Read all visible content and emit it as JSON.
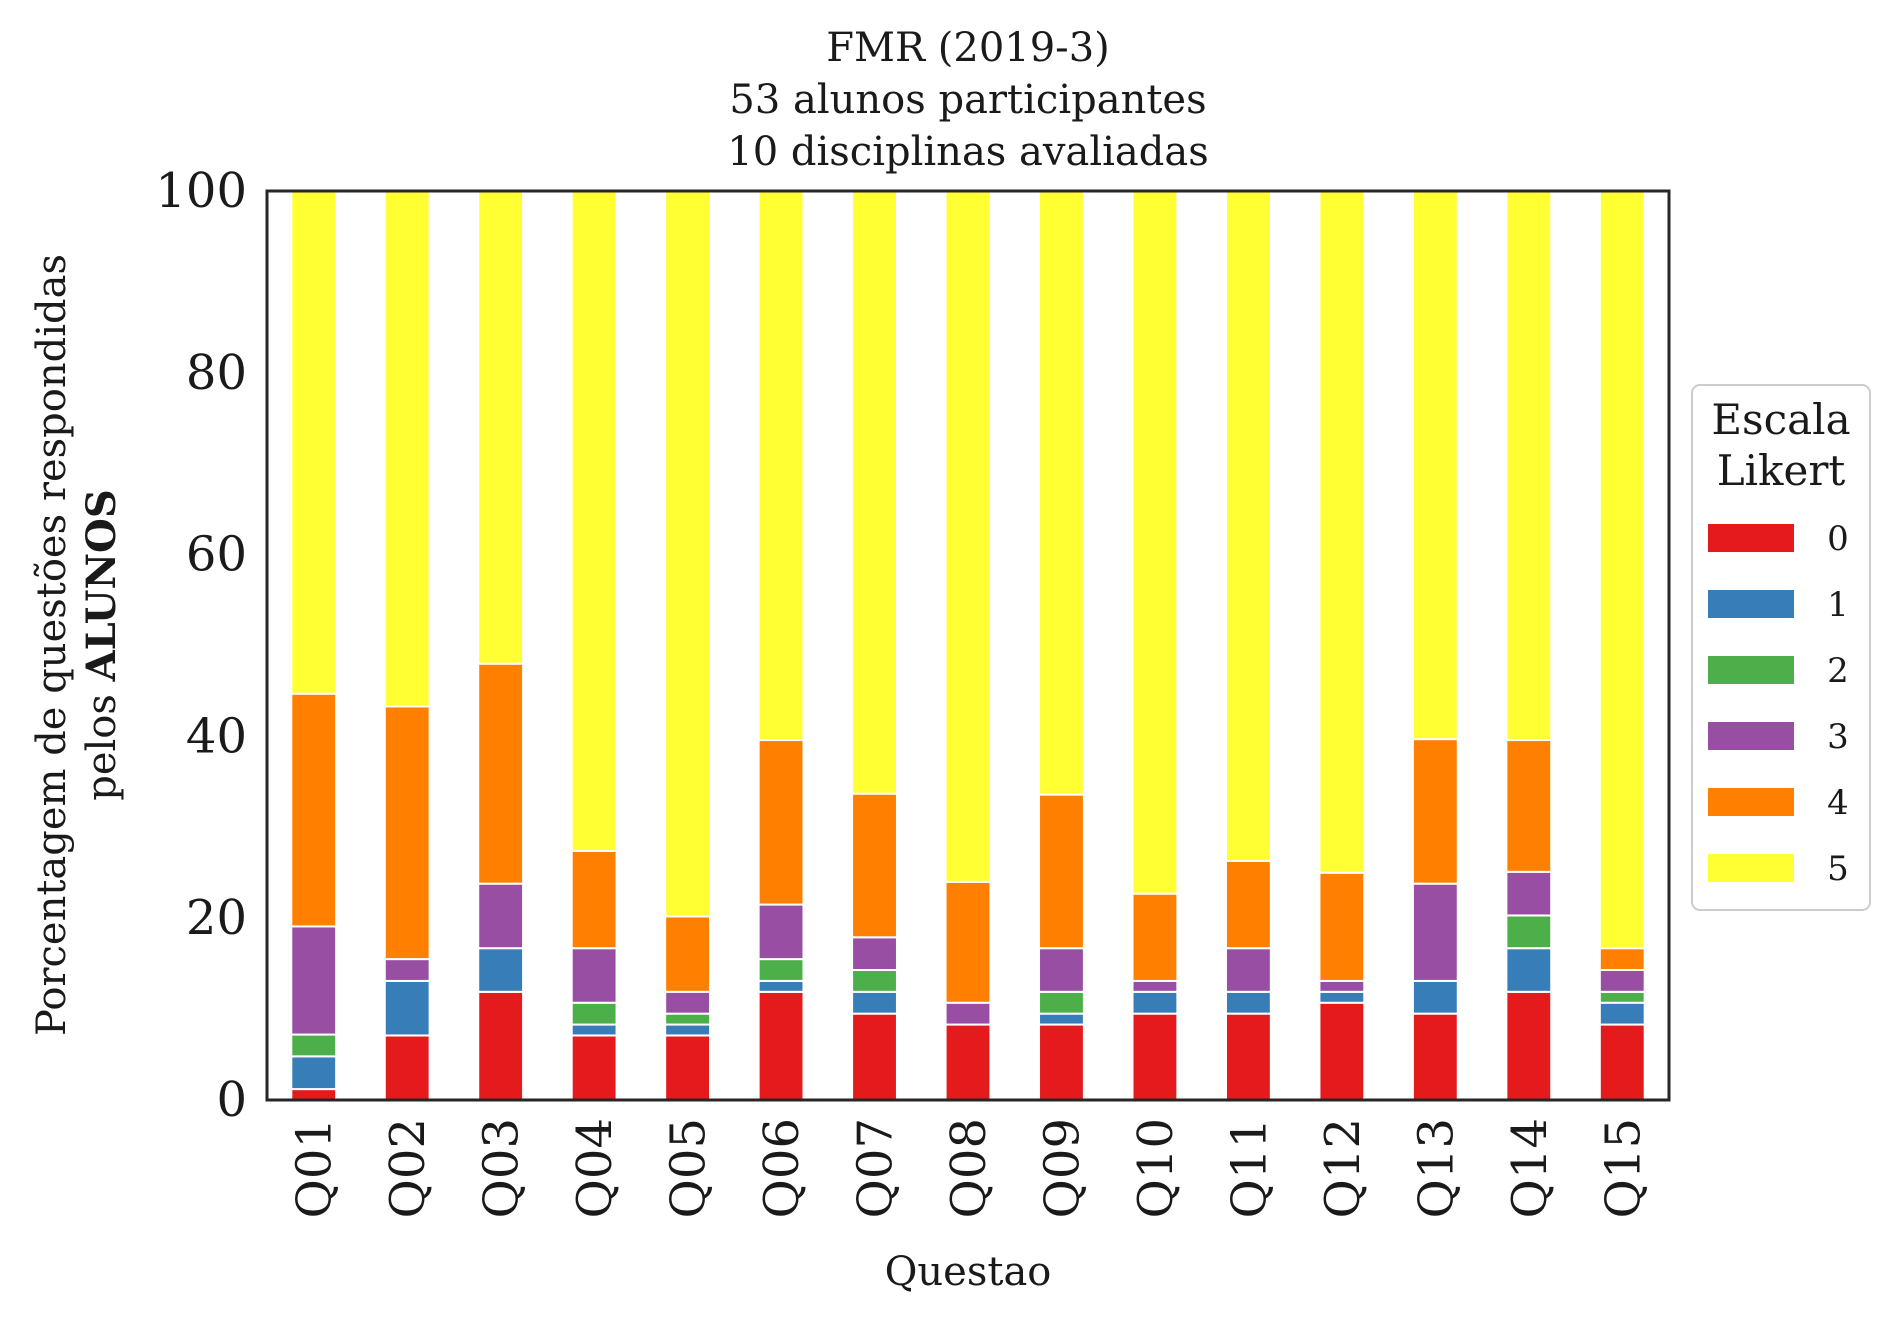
{
  "chart_data": {
    "type": "bar",
    "stacked": true,
    "title_lines": [
      "FMR (2019-3)",
      "53 alunos participantes",
      "10 disciplinas avaliadas"
    ],
    "xlabel": "Questao",
    "ylabel_line1": "Porcentagem de questões respondidas",
    "ylabel_line2_prefix": "pelos ",
    "ylabel_line2_bold": "ALUNOS",
    "ylim": [
      0,
      100
    ],
    "yticks": [
      "0",
      "20",
      "40",
      "60",
      "80",
      "100"
    ],
    "grid": false,
    "legend": {
      "title_lines": [
        "Escala",
        "Likert"
      ],
      "placement": "center-right"
    },
    "categories": [
      "Q01",
      "Q02",
      "Q03",
      "Q04",
      "Q05",
      "Q06",
      "Q07",
      "Q08",
      "Q09",
      "Q10",
      "Q11",
      "Q12",
      "Q13",
      "Q14",
      "Q15"
    ],
    "series": [
      {
        "name": "0",
        "color": "#e41a1c",
        "values": [
          1.2,
          7.1,
          11.9,
          7.1,
          7.1,
          11.9,
          9.5,
          8.3,
          8.3,
          9.5,
          9.5,
          10.7,
          9.5,
          11.9,
          8.3
        ]
      },
      {
        "name": "1",
        "color": "#377eb8",
        "values": [
          3.6,
          6.0,
          4.8,
          1.2,
          1.2,
          1.2,
          2.4,
          0.0,
          1.2,
          2.4,
          2.4,
          1.2,
          3.6,
          4.8,
          2.4
        ]
      },
      {
        "name": "2",
        "color": "#4daf4a",
        "values": [
          2.4,
          0.0,
          0.0,
          2.4,
          1.2,
          2.4,
          2.4,
          0.0,
          2.4,
          0.0,
          0.0,
          0.0,
          0.0,
          3.6,
          1.2
        ]
      },
      {
        "name": "3",
        "color": "#984ea3",
        "values": [
          11.9,
          2.4,
          7.1,
          6.0,
          2.4,
          6.0,
          3.6,
          2.4,
          4.8,
          1.2,
          4.8,
          1.2,
          10.7,
          4.8,
          2.4
        ]
      },
      {
        "name": "4",
        "color": "#ff7f00",
        "values": [
          25.6,
          27.8,
          24.2,
          10.7,
          8.3,
          18.1,
          15.8,
          13.3,
          16.9,
          9.6,
          9.6,
          11.9,
          15.9,
          14.5,
          2.4
        ]
      },
      {
        "name": "5",
        "color": "#ffff33",
        "values": [
          55.3,
          56.7,
          52.0,
          72.6,
          79.8,
          60.4,
          66.3,
          76.0,
          66.4,
          77.3,
          73.7,
          75.0,
          60.3,
          60.4,
          83.3
        ]
      }
    ]
  }
}
